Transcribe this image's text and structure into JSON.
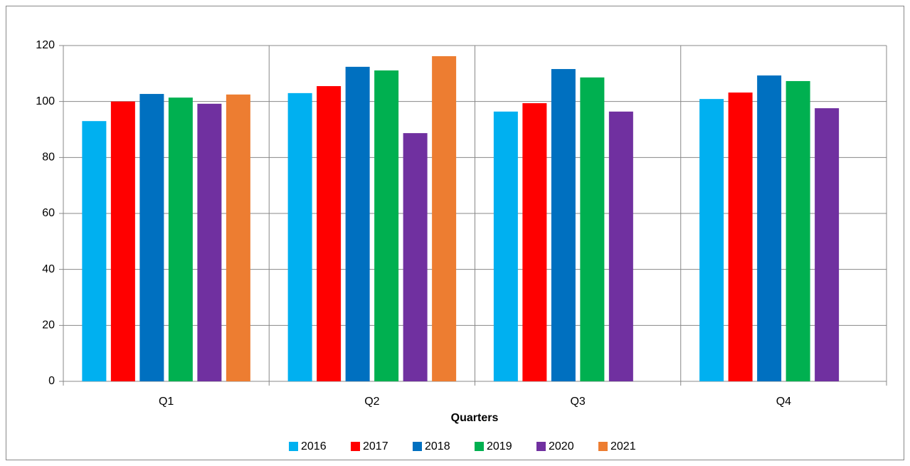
{
  "chart_data": {
    "type": "bar",
    "x_label": "Quarters",
    "categories": [
      "Q1",
      "Q2",
      "Q3",
      "Q4"
    ],
    "series": [
      {
        "name": "2016",
        "color": "#00b0f0",
        "values": [
          93.0,
          103.0,
          96.4,
          100.9
        ]
      },
      {
        "name": "2017",
        "color": "#ff0000",
        "values": [
          100.0,
          105.5,
          99.4,
          103.2
        ]
      },
      {
        "name": "2018",
        "color": "#0070c0",
        "values": [
          102.7,
          112.4,
          111.6,
          109.3
        ]
      },
      {
        "name": "2019",
        "color": "#00b050",
        "values": [
          101.4,
          111.1,
          108.6,
          107.3
        ]
      },
      {
        "name": "2020",
        "color": "#7030a0",
        "values": [
          99.2,
          88.7,
          96.4,
          97.6
        ]
      },
      {
        "name": "2021",
        "color": "#ed7d31",
        "values": [
          102.5,
          116.2,
          null,
          null
        ]
      }
    ],
    "ylim": [
      0,
      120
    ],
    "yticks": [
      0,
      20,
      40,
      60,
      80,
      100,
      120
    ],
    "grid": true,
    "legend": "bottom"
  }
}
